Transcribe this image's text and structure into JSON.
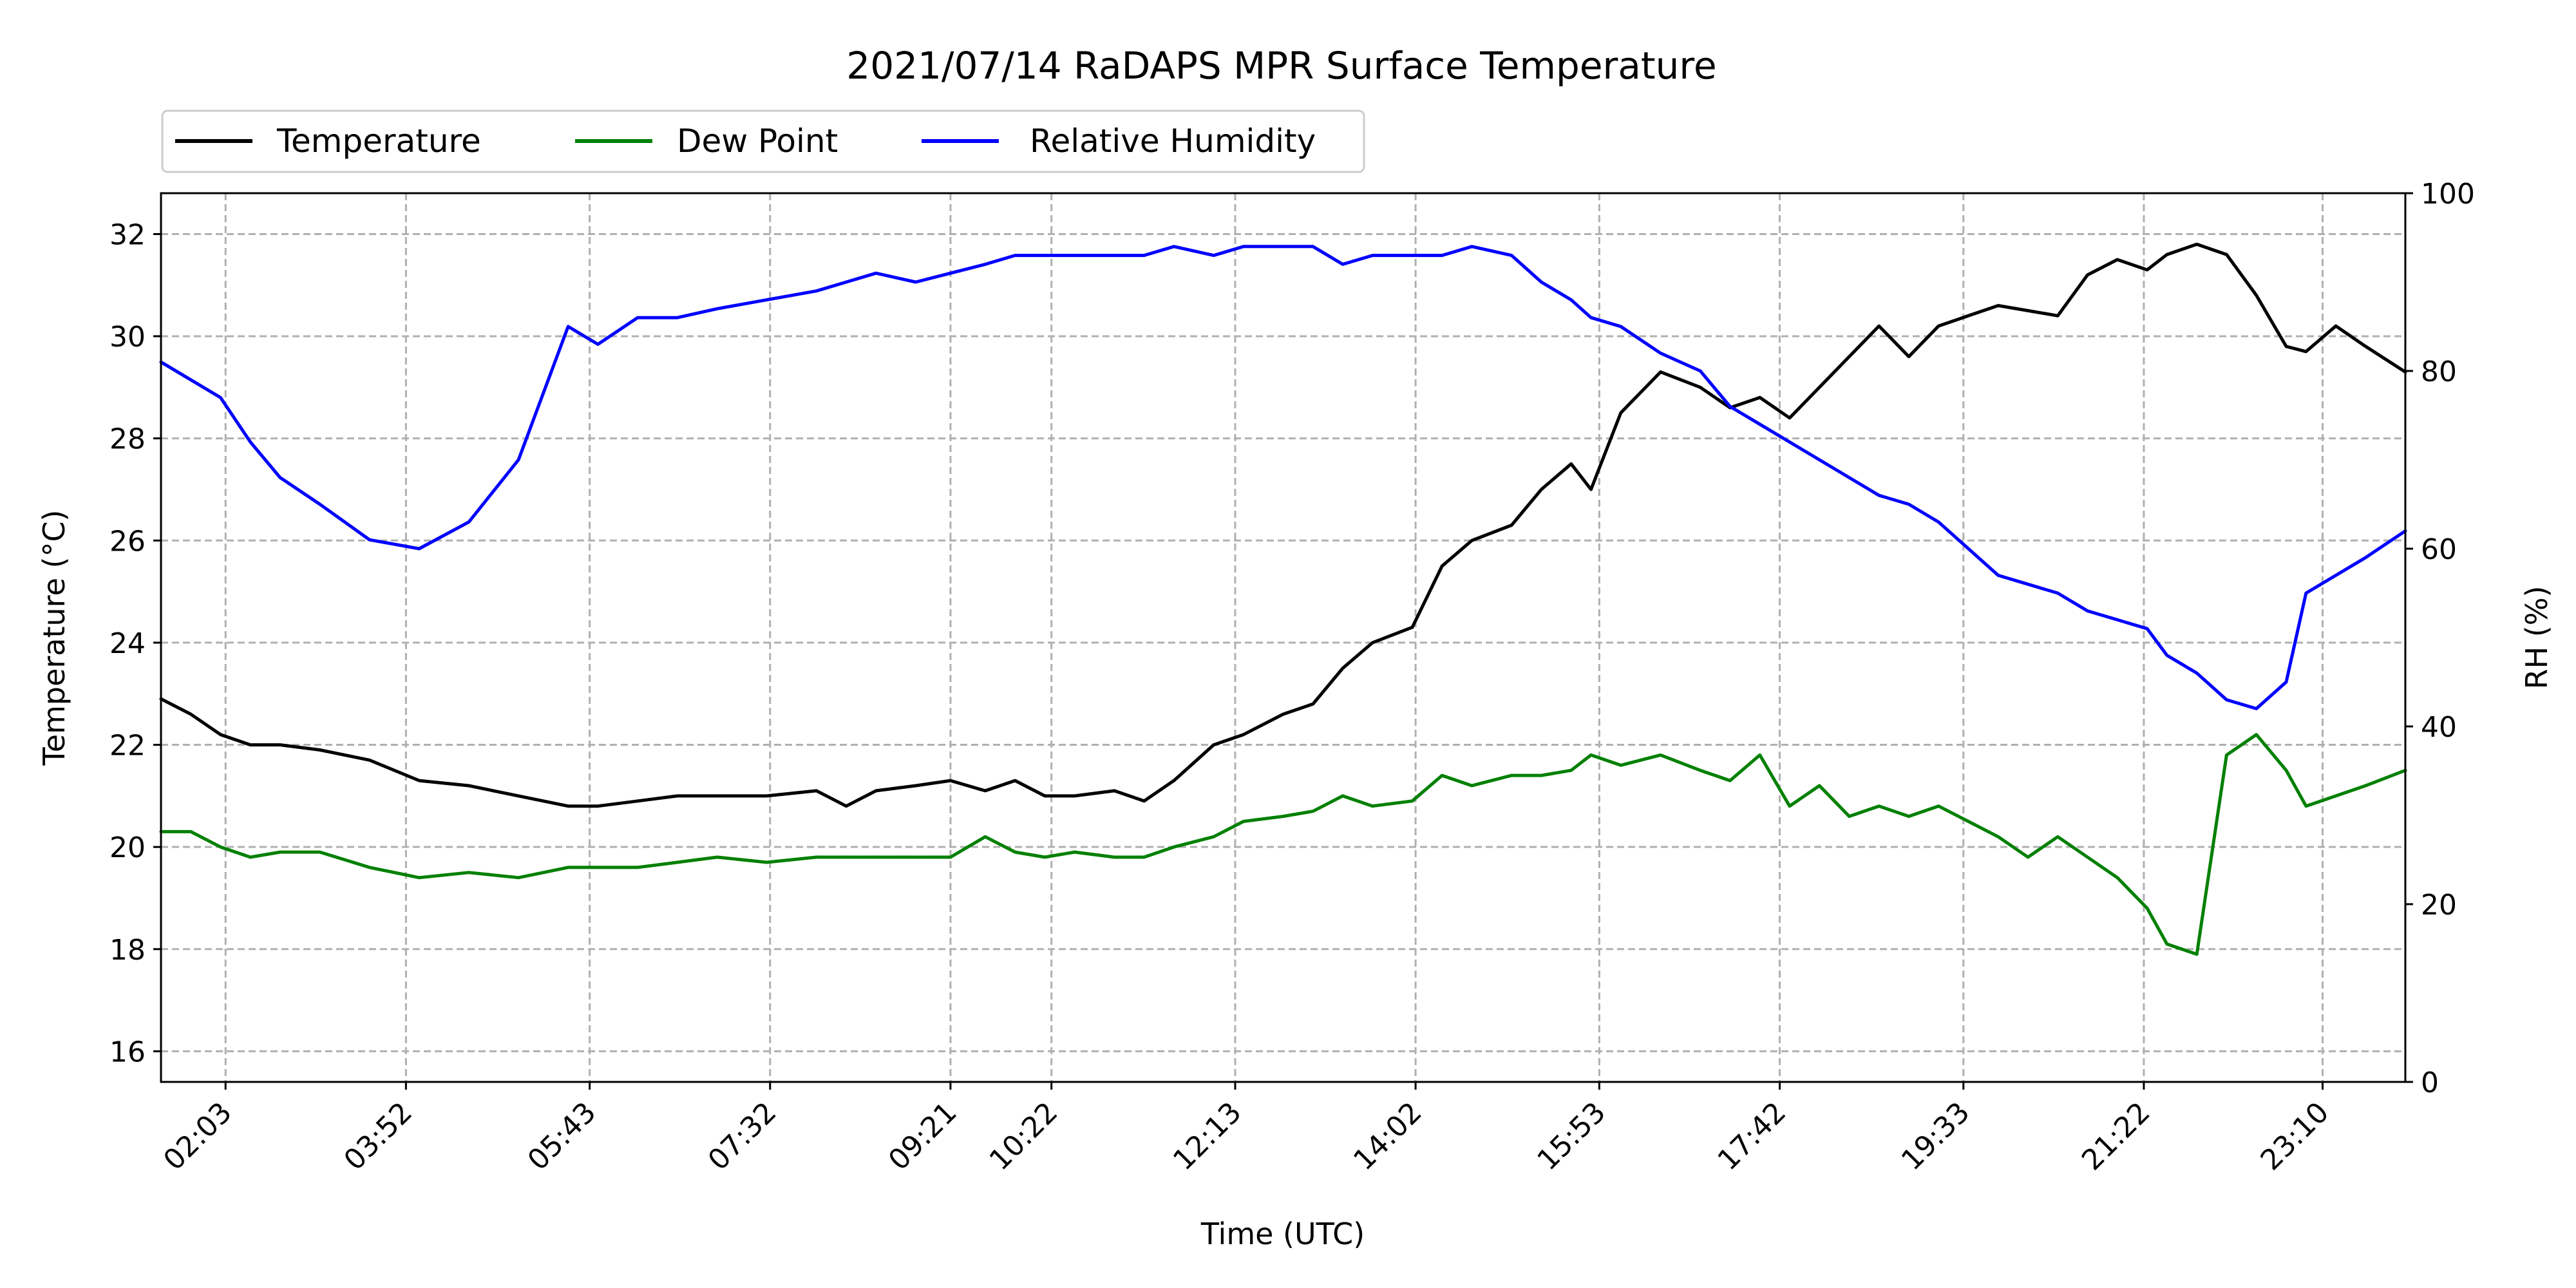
{
  "chart_data": {
    "type": "line",
    "title": "2021/07/14 RaDAPS MPR Surface Temperature",
    "xlabel": "Time (UTC)",
    "ylabel_left": "Temperature (°C)",
    "ylabel_right": "RH (%)",
    "x_unit": "hours UTC",
    "xlim": [
      1.4,
      24.0
    ],
    "ylim_left": [
      15.4,
      32.8
    ],
    "ylim_right": [
      0,
      100
    ],
    "x_ticks": [
      {
        "label": "02:03",
        "value": 2.05
      },
      {
        "label": "03:52",
        "value": 3.8667
      },
      {
        "label": "05:43",
        "value": 5.7167
      },
      {
        "label": "07:32",
        "value": 7.5333
      },
      {
        "label": "09:21",
        "value": 9.35
      },
      {
        "label": "10:22",
        "value": 10.3667
      },
      {
        "label": "12:13",
        "value": 12.2167
      },
      {
        "label": "14:02",
        "value": 14.0333
      },
      {
        "label": "15:53",
        "value": 15.8833
      },
      {
        "label": "17:42",
        "value": 17.7
      },
      {
        "label": "19:33",
        "value": 19.55
      },
      {
        "label": "21:22",
        "value": 21.3667
      },
      {
        "label": "23:10",
        "value": 23.1667
      }
    ],
    "y_ticks_left": [
      16,
      18,
      20,
      22,
      24,
      26,
      28,
      30,
      32
    ],
    "y_ticks_right": [
      0,
      20,
      40,
      60,
      80,
      100
    ],
    "grid": true,
    "legend_position": "top-left",
    "series": [
      {
        "name": "Temperature",
        "color": "#000000",
        "axis": "left",
        "x": [
          1.4,
          1.7,
          2.0,
          2.3,
          2.6,
          3.0,
          3.5,
          4.0,
          4.5,
          5.0,
          5.5,
          5.8,
          6.2,
          6.6,
          7.0,
          7.5,
          8.0,
          8.3,
          8.6,
          9.0,
          9.35,
          9.7,
          10.0,
          10.3,
          10.6,
          11.0,
          11.3,
          11.6,
          12.0,
          12.3,
          12.7,
          13.0,
          13.3,
          13.6,
          14.0,
          14.3,
          14.6,
          15.0,
          15.3,
          15.6,
          15.8,
          16.1,
          16.5,
          16.9,
          17.2,
          17.5,
          17.8,
          18.1,
          18.4,
          18.7,
          19.0,
          19.3,
          19.6,
          19.9,
          20.2,
          20.5,
          20.8,
          21.1,
          21.4,
          21.6,
          21.9,
          22.2,
          22.5,
          22.8,
          23.0,
          23.3,
          23.6,
          24.0
        ],
        "y": [
          22.9,
          22.6,
          22.2,
          22.0,
          22.0,
          21.9,
          21.7,
          21.3,
          21.2,
          21.0,
          20.8,
          20.8,
          20.9,
          21.0,
          21.0,
          21.0,
          21.1,
          20.8,
          21.1,
          21.2,
          21.3,
          21.1,
          21.3,
          21.0,
          21.0,
          21.1,
          20.9,
          21.3,
          22.0,
          22.2,
          22.6,
          22.8,
          23.5,
          24.0,
          24.3,
          25.5,
          26.0,
          26.3,
          27.0,
          27.5,
          27.0,
          28.5,
          29.3,
          29.0,
          28.6,
          28.8,
          28.4,
          29.0,
          29.6,
          30.2,
          29.6,
          30.2,
          30.4,
          30.6,
          30.5,
          30.4,
          31.2,
          31.5,
          31.3,
          31.6,
          31.8,
          31.6,
          30.8,
          29.8,
          29.7,
          30.2,
          29.8,
          29.3
        ]
      },
      {
        "name": "Dew Point",
        "color": "#008000",
        "axis": "left",
        "x": [
          1.4,
          1.7,
          2.0,
          2.3,
          2.6,
          3.0,
          3.5,
          4.0,
          4.5,
          5.0,
          5.5,
          5.8,
          6.2,
          6.6,
          7.0,
          7.5,
          8.0,
          8.3,
          8.6,
          9.0,
          9.35,
          9.7,
          10.0,
          10.3,
          10.6,
          11.0,
          11.3,
          11.6,
          12.0,
          12.3,
          12.7,
          13.0,
          13.3,
          13.6,
          14.0,
          14.3,
          14.6,
          15.0,
          15.3,
          15.6,
          15.8,
          16.1,
          16.5,
          16.9,
          17.2,
          17.5,
          17.8,
          18.1,
          18.4,
          18.7,
          19.0,
          19.3,
          19.6,
          19.9,
          20.2,
          20.5,
          20.8,
          21.1,
          21.4,
          21.6,
          21.9,
          22.2,
          22.5,
          22.8,
          23.0,
          23.3,
          23.6,
          24.0
        ],
        "y": [
          20.3,
          20.3,
          20.0,
          19.8,
          19.9,
          19.9,
          19.6,
          19.4,
          19.5,
          19.4,
          19.6,
          19.6,
          19.6,
          19.7,
          19.8,
          19.7,
          19.8,
          19.8,
          19.8,
          19.8,
          19.8,
          20.2,
          19.9,
          19.8,
          19.9,
          19.8,
          19.8,
          20.0,
          20.2,
          20.5,
          20.6,
          20.7,
          21.0,
          20.8,
          20.9,
          21.4,
          21.2,
          21.4,
          21.4,
          21.5,
          21.8,
          21.6,
          21.8,
          21.5,
          21.3,
          21.8,
          20.8,
          21.2,
          20.6,
          20.8,
          20.6,
          20.8,
          20.5,
          20.2,
          19.8,
          20.2,
          19.8,
          19.4,
          18.8,
          18.1,
          17.9,
          21.8,
          22.2,
          21.5,
          20.8,
          21.0,
          21.2,
          21.5
        ]
      },
      {
        "name": "Relative Humidity",
        "color": "#0000ff",
        "axis": "right",
        "x": [
          1.4,
          1.7,
          2.0,
          2.3,
          2.6,
          3.0,
          3.5,
          4.0,
          4.5,
          5.0,
          5.5,
          5.8,
          6.2,
          6.6,
          7.0,
          7.5,
          8.0,
          8.3,
          8.6,
          9.0,
          9.35,
          9.7,
          10.0,
          10.3,
          10.6,
          11.0,
          11.3,
          11.6,
          12.0,
          12.3,
          12.7,
          13.0,
          13.3,
          13.6,
          14.0,
          14.3,
          14.6,
          15.0,
          15.3,
          15.6,
          15.8,
          16.1,
          16.5,
          16.9,
          17.2,
          17.5,
          17.8,
          18.1,
          18.4,
          18.7,
          19.0,
          19.3,
          19.6,
          19.9,
          20.2,
          20.5,
          20.8,
          21.1,
          21.4,
          21.6,
          21.9,
          22.2,
          22.5,
          22.8,
          23.0,
          23.3,
          23.6,
          24.0
        ],
        "y": [
          81,
          79,
          77,
          72,
          68,
          65,
          61,
          60,
          63,
          70,
          85,
          83,
          86,
          86,
          87,
          88,
          89,
          90,
          91,
          90,
          91,
          92,
          93,
          93,
          93,
          93,
          93,
          94,
          93,
          94,
          94,
          94,
          92,
          93,
          93,
          93,
          94,
          93,
          90,
          88,
          86,
          85,
          82,
          80,
          76,
          74,
          72,
          70,
          68,
          66,
          65,
          63,
          60,
          57,
          56,
          55,
          53,
          52,
          51,
          48,
          46,
          43,
          42,
          45,
          55,
          57,
          59,
          62
        ]
      }
    ]
  }
}
